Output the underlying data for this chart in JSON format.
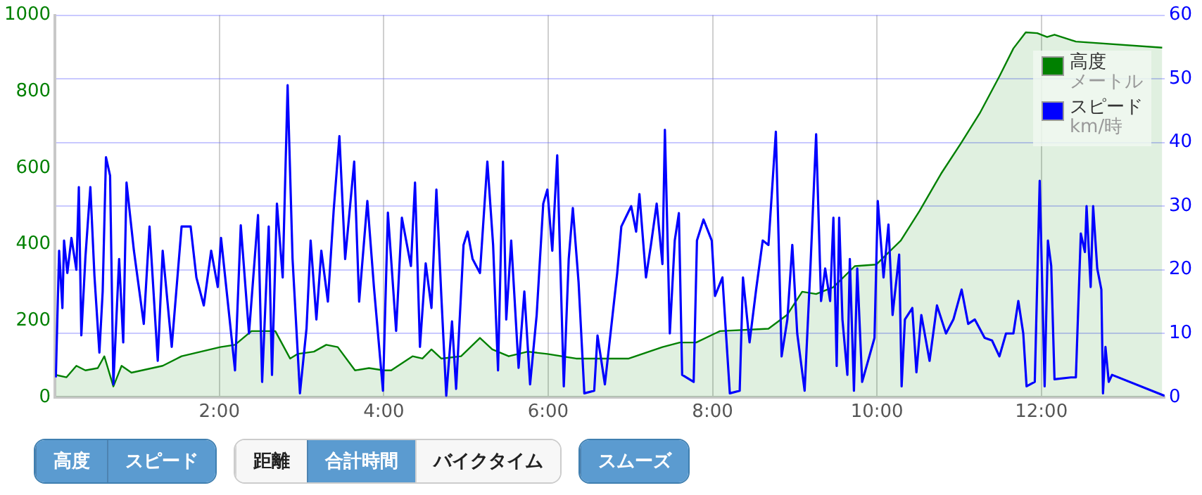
{
  "chart_data": {
    "type": "line",
    "xlim": [
      0,
      13.5
    ],
    "xticks": [
      {
        "value": 2,
        "label": "2:00"
      },
      {
        "value": 4,
        "label": "4:00"
      },
      {
        "value": 6,
        "label": "6:00"
      },
      {
        "value": 8,
        "label": "8:00"
      },
      {
        "value": 10,
        "label": "10:00"
      },
      {
        "value": 12,
        "label": "12:00"
      }
    ],
    "ylim": [
      0,
      1000
    ],
    "yticks": [
      0,
      200,
      400,
      600,
      800,
      1000
    ],
    "y2lim": [
      0,
      60
    ],
    "y2ticks": [
      0,
      10,
      20,
      30,
      40,
      50,
      60
    ],
    "grid": true,
    "legend": "top right",
    "marker": "none",
    "annotations": [
      "メートル",
      "km/時",
      "高度",
      "スピード",
      "距離",
      "合計時間",
      "バイクタイム",
      "スムーズ"
    ],
    "series": [
      {
        "name": "高度",
        "type": "area",
        "color": "#008000",
        "x": [
          0.01,
          0.14,
          0.26,
          0.37,
          0.52,
          0.6,
          0.71,
          0.81,
          0.93,
          1.31,
          1.54,
          2.01,
          2.19,
          2.39,
          2.68,
          2.86,
          2.95,
          3.15,
          3.3,
          3.44,
          3.65,
          3.82,
          4.0,
          4.09,
          4.35,
          4.47,
          4.58,
          4.7,
          4.94,
          5.17,
          5.32,
          5.52,
          5.75,
          5.99,
          6.34,
          6.98,
          7.39,
          7.6,
          7.8,
          8.09,
          8.68,
          8.91,
          9.09,
          9.26,
          9.47,
          9.73,
          9.99,
          10.29,
          10.52,
          10.78,
          11.02,
          11.25,
          11.49,
          11.66,
          11.81,
          11.95,
          12.07,
          12.16,
          12.42,
          13.47
        ],
        "values": [
          58,
          52,
          82,
          70,
          76,
          107,
          28,
          82,
          64,
          82,
          107,
          131,
          137,
          173,
          173,
          101,
          113,
          119,
          137,
          131,
          70,
          76,
          70,
          70,
          107,
          101,
          125,
          101,
          107,
          155,
          125,
          107,
          119,
          113,
          101,
          101,
          131,
          143,
          143,
          173,
          179,
          216,
          276,
          270,
          288,
          343,
          347,
          410,
          488,
          585,
          664,
          743,
          840,
          913,
          955,
          953,
          943,
          949,
          931,
          915
        ]
      },
      {
        "name": "スピード",
        "type": "line",
        "axis": "y2",
        "color": "#0000ff",
        "x": [
          0.01,
          0.05,
          0.09,
          0.11,
          0.15,
          0.2,
          0.26,
          0.29,
          0.32,
          0.37,
          0.43,
          0.48,
          0.54,
          0.58,
          0.62,
          0.67,
          0.71,
          0.78,
          0.83,
          0.87,
          0.96,
          1.08,
          1.15,
          1.25,
          1.31,
          1.42,
          1.54,
          1.65,
          1.72,
          1.81,
          1.9,
          1.98,
          2.02,
          2.19,
          2.26,
          2.36,
          2.47,
          2.52,
          2.6,
          2.64,
          2.7,
          2.77,
          2.83,
          2.89,
          2.98,
          3.06,
          3.11,
          3.18,
          3.24,
          3.32,
          3.39,
          3.46,
          3.53,
          3.64,
          3.7,
          3.8,
          3.88,
          3.99,
          4.05,
          4.15,
          4.22,
          4.33,
          4.38,
          4.44,
          4.51,
          4.58,
          4.64,
          4.7,
          4.76,
          4.83,
          4.88,
          4.97,
          5.02,
          5.08,
          5.17,
          5.26,
          5.33,
          5.39,
          5.45,
          5.49,
          5.55,
          5.64,
          5.71,
          5.78,
          5.86,
          5.94,
          5.99,
          6.05,
          6.11,
          6.19,
          6.25,
          6.3,
          6.37,
          6.44,
          6.56,
          6.6,
          6.69,
          6.84,
          6.89,
          7.01,
          7.07,
          7.11,
          7.19,
          7.25,
          7.32,
          7.39,
          7.42,
          7.48,
          7.54,
          7.59,
          7.63,
          7.77,
          7.81,
          7.89,
          7.99,
          8.03,
          8.12,
          8.21,
          8.33,
          8.37,
          8.45,
          8.53,
          8.61,
          8.68,
          8.77,
          8.84,
          8.91,
          8.97,
          9.03,
          9.12,
          9.19,
          9.26,
          9.32,
          9.37,
          9.43,
          9.47,
          9.51,
          9.54,
          9.58,
          9.64,
          9.67,
          9.72,
          9.76,
          9.82,
          9.97,
          10.01,
          10.08,
          10.14,
          10.19,
          10.27,
          10.3,
          10.34,
          10.43,
          10.48,
          10.54,
          10.64,
          10.73,
          10.84,
          10.93,
          11.03,
          11.11,
          11.19,
          11.31,
          11.4,
          11.49,
          11.57,
          11.66,
          11.72,
          11.78,
          11.82,
          11.92,
          11.98,
          12.04,
          12.08,
          12.12,
          12.16,
          12.36,
          12.42,
          12.48,
          12.53,
          12.55,
          12.6,
          12.63,
          12.68,
          12.73,
          12.75,
          12.78,
          12.82,
          12.86,
          13.5
        ],
        "values": [
          3.1,
          23,
          14,
          24.6,
          19.5,
          25,
          20,
          33,
          9.7,
          22,
          33,
          19,
          7,
          16.6,
          37.7,
          34.8,
          2,
          21.7,
          8.6,
          33.7,
          23,
          11.5,
          26.8,
          5.7,
          23,
          7.9,
          26.8,
          26.8,
          18.8,
          14.4,
          23,
          17.3,
          25,
          4.2,
          27,
          10,
          28.6,
          2.4,
          26.8,
          3.5,
          30.4,
          18.8,
          49,
          21.7,
          0.6,
          10.8,
          24.6,
          12.2,
          23,
          15,
          29.3,
          41,
          21.7,
          37,
          15,
          30.8,
          17.3,
          1,
          29,
          10.4,
          28.2,
          20.6,
          33.7,
          7.9,
          21,
          14,
          32.6,
          15.9,
          0.2,
          11.9,
          1.3,
          23.9,
          26,
          21.7,
          19.5,
          37,
          23.9,
          4.2,
          37,
          12.2,
          24.6,
          4.6,
          16.6,
          2,
          12.9,
          30.4,
          32.6,
          23,
          38,
          1.7,
          21.7,
          29.7,
          18,
          0.6,
          1,
          9.7,
          2,
          19.5,
          26.8,
          30,
          26,
          31.9,
          18.8,
          23.9,
          30.4,
          20.9,
          42,
          10,
          24.6,
          28.9,
          3.5,
          2.4,
          24.6,
          27.9,
          24.6,
          15.9,
          18.8,
          0.6,
          1,
          18.8,
          8.6,
          16.9,
          24.6,
          23.9,
          41.7,
          6.4,
          12.2,
          23.9,
          10,
          1,
          20.2,
          41.3,
          15.1,
          20.2,
          15.1,
          28.2,
          4.9,
          28.2,
          12.2,
          3.5,
          21.7,
          1,
          20.2,
          2.4,
          9.3,
          30.8,
          18.8,
          27.1,
          12.9,
          22.4,
          1.7,
          12.2,
          14,
          3.9,
          12.9,
          5.7,
          14.4,
          10,
          12.2,
          16.9,
          11.5,
          12.2,
          9.3,
          8.9,
          6.4,
          10,
          10,
          15.1,
          10,
          1.7,
          2.4,
          34,
          1.7,
          24.6,
          20.6,
          2.8,
          3.1,
          3.1,
          25.7,
          22.8,
          30,
          17.3,
          30,
          20.2,
          16.9,
          0.6,
          7.9,
          2.4,
          3.5,
          0.2
        ]
      }
    ]
  }
}
